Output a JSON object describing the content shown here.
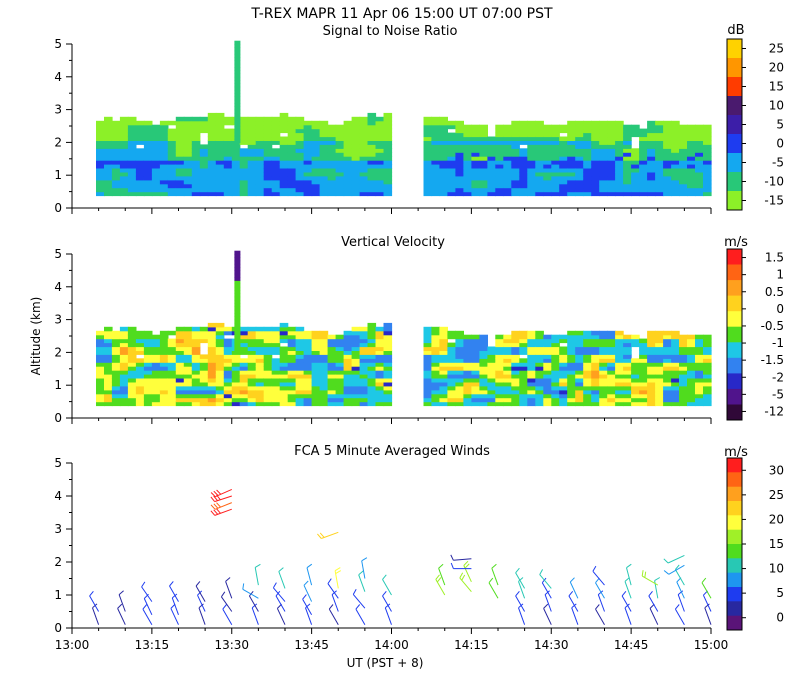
{
  "title": "T-REX   MAPR 11 Apr 06   15:00 UT   07:00   PST",
  "chart_data": [
    {
      "type": "heatmap",
      "title": "Signal to Noise Ratio",
      "unit": "dB",
      "ylim": [
        0,
        5
      ],
      "yticks": [
        "0",
        "1",
        "2",
        "3",
        "4",
        "5"
      ],
      "xlim": [
        "13:00",
        "15:00"
      ],
      "colorbar_ticks": [
        "25",
        "20",
        "15",
        "10",
        "5",
        "0",
        "-5",
        "-10",
        "-15"
      ],
      "colorbar_colors": [
        "#ffd200",
        "#ff9600",
        "#ff3c00",
        "#4a1a6e",
        "#3c1ea8",
        "#1e3cf0",
        "#14a8f0",
        "#28c878",
        "#8cf028"
      ]
    },
    {
      "type": "heatmap",
      "title": "Vertical Velocity",
      "unit": "m/s",
      "ylabel": "Altitude (km)",
      "ylim": [
        0,
        5
      ],
      "yticks": [
        "0",
        "1",
        "2",
        "3",
        "4",
        "5"
      ],
      "xlim": [
        "13:00",
        "15:00"
      ],
      "colorbar_ticks": [
        "1.5",
        "1",
        "0.5",
        "0",
        "-0.5",
        "-1",
        "-1.5",
        "-2",
        "-5",
        "-12"
      ],
      "colorbar_colors": [
        "#ff1e1e",
        "#ff6414",
        "#ffa01e",
        "#ffd21e",
        "#ffff3c",
        "#50dc1e",
        "#1ec8e6",
        "#3282f0",
        "#2828c8",
        "#50148c",
        "#300838"
      ]
    },
    {
      "type": "scatter",
      "title": "FCA 5 Minute Averaged Winds",
      "unit": "m/s",
      "xlabel": "UT  (PST + 8)",
      "ylim": [
        0,
        5
      ],
      "yticks": [
        "0",
        "1",
        "2",
        "3",
        "4",
        "5"
      ],
      "xticks": [
        "13:00",
        "13:15",
        "13:30",
        "13:45",
        "14:00",
        "14:15",
        "14:30",
        "14:45",
        "15:00"
      ],
      "colorbar_ticks": [
        "30",
        "25",
        "20",
        "15",
        "10",
        "5",
        "0"
      ],
      "colorbar_colors": [
        "#ff1e1e",
        "#ff6414",
        "#ffa01e",
        "#ffd21e",
        "#ffff3c",
        "#a0f028",
        "#50dc1e",
        "#28c8b4",
        "#1e96f0",
        "#1e3cf0",
        "#2828a0",
        "#5a1478"
      ],
      "colorbar_range": [
        0,
        30
      ],
      "wind_profiles": [
        {
          "t": 5,
          "levels": [
            [
              0.1,
              4,
              340
            ],
            [
              0.5,
              5,
              330
            ]
          ]
        },
        {
          "t": 10,
          "levels": [
            [
              0.1,
              4,
              335
            ],
            [
              0.5,
              4,
              340
            ]
          ]
        },
        {
          "t": 15,
          "levels": [
            [
              0.1,
              5,
              330
            ],
            [
              0.4,
              5,
              335
            ],
            [
              0.8,
              6,
              325
            ]
          ]
        },
        {
          "t": 20,
          "levels": [
            [
              0.1,
              5,
              335
            ],
            [
              0.4,
              5,
              340
            ],
            [
              0.8,
              5,
              330
            ]
          ]
        },
        {
          "t": 25,
          "levels": [
            [
              0.1,
              4,
              340
            ],
            [
              0.5,
              5,
              335
            ],
            [
              0.8,
              4,
              330
            ]
          ]
        },
        {
          "t": 30,
          "levels": [
            [
              0.1,
              5,
              330
            ],
            [
              0.5,
              4,
              325
            ],
            [
              0.9,
              3,
              340
            ],
            [
              3.6,
              28,
              250
            ],
            [
              3.8,
              27,
              248
            ],
            [
              4.0,
              29,
              252
            ],
            [
              4.2,
              28,
              246
            ]
          ]
        },
        {
          "t": 35,
          "levels": [
            [
              0.1,
              5,
              340
            ],
            [
              0.5,
              4,
              330
            ],
            [
              0.9,
              9,
              300
            ],
            [
              1.3,
              11,
              350
            ]
          ]
        },
        {
          "t": 40,
          "levels": [
            [
              0.1,
              4,
              335
            ],
            [
              0.5,
              5,
              330
            ],
            [
              0.8,
              7,
              320
            ],
            [
              1.2,
              12,
              340
            ]
          ]
        },
        {
          "t": 45,
          "levels": [
            [
              0.1,
              5,
              340
            ],
            [
              0.4,
              6,
              330
            ],
            [
              0.8,
              8,
              335
            ],
            [
              1.3,
              9,
              345
            ]
          ]
        },
        {
          "t": 50,
          "levels": [
            [
              0.1,
              4,
              330
            ],
            [
              0.5,
              5,
              340
            ],
            [
              0.9,
              7,
              325
            ],
            [
              1.2,
              18,
              350
            ],
            [
              2.9,
              22,
              250
            ]
          ]
        },
        {
          "t": 55,
          "levels": [
            [
              0.1,
              6,
              330
            ],
            [
              0.6,
              5,
              320
            ],
            [
              1.1,
              10,
              340
            ],
            [
              1.5,
              9,
              350
            ]
          ]
        },
        {
          "t": 60,
          "levels": [
            [
              0.1,
              5,
              340
            ],
            [
              0.5,
              6,
              330
            ],
            [
              1.0,
              12,
              330
            ]
          ]
        },
        {
          "t": 70,
          "levels": [
            [
              1.0,
              15,
              330
            ],
            [
              1.3,
              14,
              340
            ]
          ]
        },
        {
          "t": 75,
          "levels": [
            [
              1.1,
              16,
              320
            ],
            [
              1.4,
              15,
              335
            ],
            [
              1.8,
              5,
              270
            ],
            [
              2.1,
              4,
              265
            ]
          ]
        },
        {
          "t": 80,
          "levels": [
            [
              0.9,
              13,
              330
            ],
            [
              1.3,
              14,
              340
            ]
          ]
        },
        {
          "t": 85,
          "levels": [
            [
              0.1,
              5,
              340
            ],
            [
              0.5,
              5,
              330
            ],
            [
              0.9,
              11,
              340
            ],
            [
              1.2,
              10,
              330
            ]
          ]
        },
        {
          "t": 90,
          "levels": [
            [
              0.1,
              4,
              335
            ],
            [
              0.5,
              6,
              340
            ],
            [
              0.9,
              7,
              330
            ],
            [
              1.2,
              12,
              320
            ]
          ]
        },
        {
          "t": 95,
          "levels": [
            [
              0.1,
              5,
              340
            ],
            [
              0.5,
              5,
              330
            ],
            [
              0.9,
              9,
              335
            ]
          ]
        },
        {
          "t": 100,
          "levels": [
            [
              0.1,
              4,
              330
            ],
            [
              0.5,
              5,
              340
            ],
            [
              0.9,
              8,
              330
            ],
            [
              1.3,
              5,
              320
            ]
          ]
        },
        {
          "t": 105,
          "levels": [
            [
              0.1,
              5,
              340
            ],
            [
              0.5,
              6,
              330
            ],
            [
              0.9,
              10,
              340
            ],
            [
              1.3,
              12,
              345
            ]
          ]
        },
        {
          "t": 110,
          "levels": [
            [
              0.1,
              4,
              335
            ],
            [
              0.5,
              5,
              330
            ],
            [
              0.9,
              11,
              350
            ],
            [
              1.3,
              15,
              300
            ]
          ]
        },
        {
          "t": 115,
          "levels": [
            [
              0.1,
              5,
              330
            ],
            [
              0.5,
              5,
              340
            ],
            [
              0.9,
              9,
              335
            ],
            [
              1.3,
              11,
              330
            ],
            [
              1.9,
              9,
              240
            ],
            [
              2.2,
              11,
              245
            ]
          ]
        },
        {
          "t": 120,
          "levels": [
            [
              0.1,
              4,
              340
            ],
            [
              0.5,
              5,
              335
            ],
            [
              0.9,
              13,
              330
            ]
          ]
        }
      ]
    }
  ]
}
